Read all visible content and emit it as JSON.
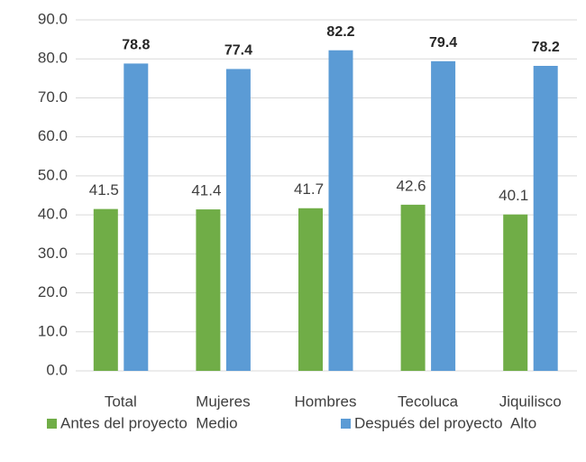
{
  "chart_data": {
    "type": "bar",
    "categories": [
      "Total",
      "Mujeres",
      "Hombres",
      "Tecoluca",
      "Jiquilisco"
    ],
    "series": [
      {
        "name": "Antes del proyecto  Medio",
        "color": "#70ad47",
        "values": [
          41.5,
          41.4,
          41.7,
          42.6,
          40.1
        ]
      },
      {
        "name": "Después del proyecto  Alto",
        "color": "#5b9bd5",
        "values": [
          78.8,
          77.4,
          82.2,
          79.4,
          78.2
        ]
      }
    ],
    "ylim": [
      0,
      90
    ],
    "yticks": [
      {
        "value": 0,
        "label": "0.0"
      },
      {
        "value": 10,
        "label": "10.0"
      },
      {
        "value": 20,
        "label": "20.0"
      },
      {
        "value": 30,
        "label": "30.0"
      },
      {
        "value": 40,
        "label": "40.0"
      },
      {
        "value": 50,
        "label": "50.0"
      },
      {
        "value": 60,
        "label": "60.0"
      },
      {
        "value": 70,
        "label": "70.0"
      },
      {
        "value": 80,
        "label": "80.0"
      },
      {
        "value": 90,
        "label": "90.0"
      }
    ],
    "grid": true,
    "legend": "bottom"
  }
}
